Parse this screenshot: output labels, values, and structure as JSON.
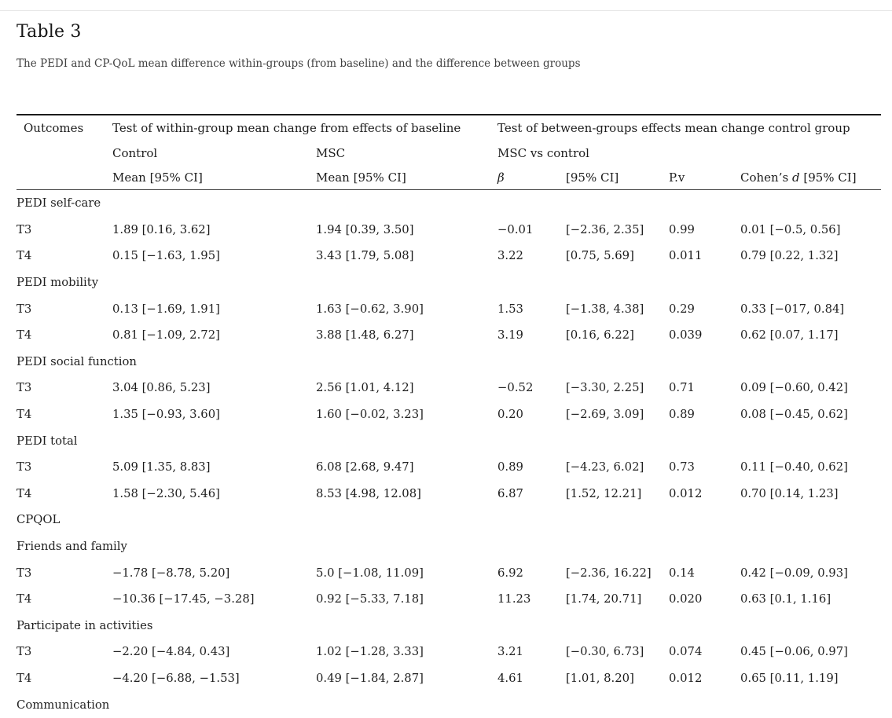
{
  "page": {
    "title": "Table 3",
    "caption": "The PEDI and CP-QoL mean difference within-groups (from baseline) and the difference between groups"
  },
  "table": {
    "header": {
      "outcomes": "Outcomes",
      "group_within": "Test of within-group mean change from effects of baseline",
      "group_between": "Test of between-groups effects mean change control group",
      "sub_control": "Control",
      "sub_msc": "MSC",
      "sub_msc_vs_control": "MSC vs control",
      "col_control_mean": "Mean [95% CI]",
      "col_msc_mean": "Mean [95% CI]",
      "col_beta": "β",
      "col_ci": "[95% CI]",
      "col_pv": "P.v",
      "cohens_prefix": "Cohen’s ",
      "cohens_d": "d",
      "cohens_suffix": " [95% CI]"
    },
    "rows": [
      {
        "type": "section",
        "label": "PEDI self-care"
      },
      {
        "type": "data",
        "label": "T3",
        "cells": [
          {
            "t": "1.89 [0.16, 3.62]",
            "b": true
          },
          {
            "t": "1.94 [0.39, 3.50]",
            "b": true
          },
          {
            "t": "−0.01",
            "b": false
          },
          {
            "t": "[−2.36, 2.35]",
            "b": false
          },
          {
            "t": "0.99",
            "b": false
          },
          {
            "t": "0.01 [−0.5, 0.56]",
            "b": false
          }
        ]
      },
      {
        "type": "data",
        "label": "T4",
        "cells": [
          {
            "t": "0.15 [−1.63, 1.95]",
            "b": false
          },
          {
            "t": "3.43 [1.79, 5.08]",
            "b": true
          },
          {
            "t": "3.22",
            "b": true
          },
          {
            "t": "[0.75, 5.69]",
            "b": true
          },
          {
            "t": "0.011",
            "b": true
          },
          {
            "t": "0.79 [0.22, 1.32]",
            "b": false
          }
        ]
      },
      {
        "type": "section",
        "label": "PEDI mobility"
      },
      {
        "type": "data",
        "label": "T3",
        "cells": [
          {
            "t": "0.13 [−1.69, 1.91]",
            "b": false
          },
          {
            "t": "1.63 [−0.62, 3.90]",
            "b": false
          },
          {
            "t": "1.53",
            "b": false
          },
          {
            "t": "[−1.38, 4.38]",
            "b": false
          },
          {
            "t": "0.29",
            "b": false
          },
          {
            "t": "0.33 [−017, 0.84]",
            "b": false
          }
        ]
      },
      {
        "type": "data",
        "label": "T4",
        "cells": [
          {
            "t": "0.81 [−1.09, 2.72]",
            "b": false
          },
          {
            "t": "3.88 [1.48, 6.27]",
            "b": true
          },
          {
            "t": "3.19",
            "b": true
          },
          {
            "t": "[0.16, 6.22]",
            "b": true
          },
          {
            "t": "0.039",
            "b": true
          },
          {
            "t": "0.62 [0.07, 1.17]",
            "b": false
          }
        ]
      },
      {
        "type": "section",
        "label": "PEDI social function"
      },
      {
        "type": "data",
        "label": "T3",
        "cells": [
          {
            "t": "3.04 [0.86, 5.23]",
            "b": true
          },
          {
            "t": "2.56 [1.01, 4.12]",
            "b": true
          },
          {
            "t": "−0.52",
            "b": false
          },
          {
            "t": "[−3.30, 2.25]",
            "b": false
          },
          {
            "t": "0.71",
            "b": false
          },
          {
            "t": "0.09 [−0.60, 0.42]",
            "b": false
          }
        ]
      },
      {
        "type": "data",
        "label": "T4",
        "cells": [
          {
            "t": "1.35 [−0.93, 3.60]",
            "b": false
          },
          {
            "t": "1.60 [−0.02, 3.23]",
            "b": false
          },
          {
            "t": "0.20",
            "b": false
          },
          {
            "t": "[−2.69, 3.09]",
            "b": false
          },
          {
            "t": "0.89",
            "b": false
          },
          {
            "t": "0.08 [−0.45, 0.62]",
            "b": false
          }
        ]
      },
      {
        "type": "section",
        "label": "PEDI total"
      },
      {
        "type": "data",
        "label": "T3",
        "cells": [
          {
            "t": "5.09 [1.35, 8.83]",
            "b": true
          },
          {
            "t": "6.08 [2.68, 9.47]",
            "b": true
          },
          {
            "t": "0.89",
            "b": false
          },
          {
            "t": "[−4.23, 6.02]",
            "b": false
          },
          {
            "t": "0.73",
            "b": false
          },
          {
            "t": "0.11 [−0.40, 0.62]",
            "b": false
          }
        ]
      },
      {
        "type": "data",
        "label": "T4",
        "cells": [
          {
            "t": "1.58 [−2.30, 5.46]",
            "b": false
          },
          {
            "t": "8.53 [4.98, 12.08]",
            "b": true
          },
          {
            "t": "6.87",
            "b": true
          },
          {
            "t": "[1.52, 12.21]",
            "b": true
          },
          {
            "t": "0.012",
            "b": true
          },
          {
            "t": "0.70 [0.14, 1.23]",
            "b": false
          }
        ]
      },
      {
        "type": "section",
        "label": "CPQOL"
      },
      {
        "type": "section",
        "label": "Friends and family"
      },
      {
        "type": "data",
        "label": "T3",
        "cells": [
          {
            "t": "−1.78 [−8.78, 5.20]",
            "b": false
          },
          {
            "t": "5.0 [−1.08, 11.09]",
            "b": false
          },
          {
            "t": "6.92",
            "b": false
          },
          {
            "t": "[−2.36, 16.22]",
            "b": false
          },
          {
            "t": "0.14",
            "b": false
          },
          {
            "t": "0.42 [−0.09, 0.93]",
            "b": false
          }
        ]
      },
      {
        "type": "data",
        "label": "T4",
        "cells": [
          {
            "t": "−10.36 [−17.45, −3.28]",
            "b": false
          },
          {
            "t": "0.92 [−5.33, 7.18]",
            "b": false
          },
          {
            "t": "11.23",
            "b": true
          },
          {
            "t": "[1.74, 20.71]",
            "b": true
          },
          {
            "t": "0.020",
            "b": true
          },
          {
            "t": "0.63 [0.1, 1.16]",
            "b": false
          }
        ]
      },
      {
        "type": "section",
        "label": "Participate in activities"
      },
      {
        "type": "data",
        "label": "T3",
        "cells": [
          {
            "t": "−2.20 [−4.84, 0.43]",
            "b": false
          },
          {
            "t": "1.02 [−1.28, 3.33]",
            "b": false
          },
          {
            "t": "3.21",
            "b": false
          },
          {
            "t": "[−0.30, 6.73]",
            "b": false
          },
          {
            "t": "0.074",
            "b": false
          },
          {
            "t": "0.45 [−0.06, 0.97]",
            "b": false
          }
        ]
      },
      {
        "type": "data",
        "label": "T4",
        "cells": [
          {
            "t": "−4.20 [−6.88, −1.53]",
            "b": false
          },
          {
            "t": "0.49 [−1.84, 2.87]",
            "b": false
          },
          {
            "t": "4.61",
            "b": true
          },
          {
            "t": "[1.01, 8.20]",
            "b": true
          },
          {
            "t": "0.012",
            "b": true
          },
          {
            "t": "0.65 [0.11, 1.19]",
            "b": false
          }
        ]
      },
      {
        "type": "section",
        "label": "Communication"
      }
    ]
  }
}
